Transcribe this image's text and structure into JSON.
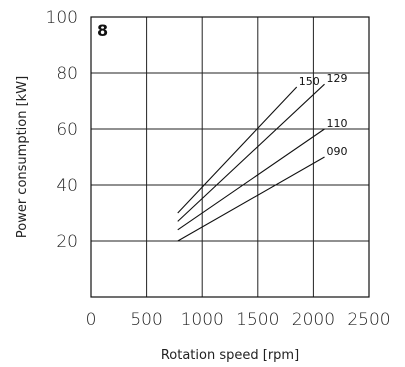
{
  "chart_data": {
    "type": "line",
    "panel_number": "8",
    "xlabel": "Rotation speed [rpm]",
    "ylabel": "Power consumption [kW]",
    "xlim": [
      0,
      2500
    ],
    "ylim": [
      0,
      100
    ],
    "x_ticks": [
      0,
      500,
      1000,
      1500,
      2000,
      2500
    ],
    "y_ticks": [
      20,
      40,
      60,
      80,
      100
    ],
    "grid": true,
    "series": [
      {
        "name": "150",
        "x": [
          780,
          1850
        ],
        "y": [
          30,
          75
        ]
      },
      {
        "name": "129",
        "x": [
          780,
          2100
        ],
        "y": [
          27,
          76
        ]
      },
      {
        "name": "110",
        "x": [
          780,
          2100
        ],
        "y": [
          24,
          60
        ]
      },
      {
        "name": "090",
        "x": [
          780,
          2100
        ],
        "y": [
          20,
          50
        ]
      }
    ]
  }
}
